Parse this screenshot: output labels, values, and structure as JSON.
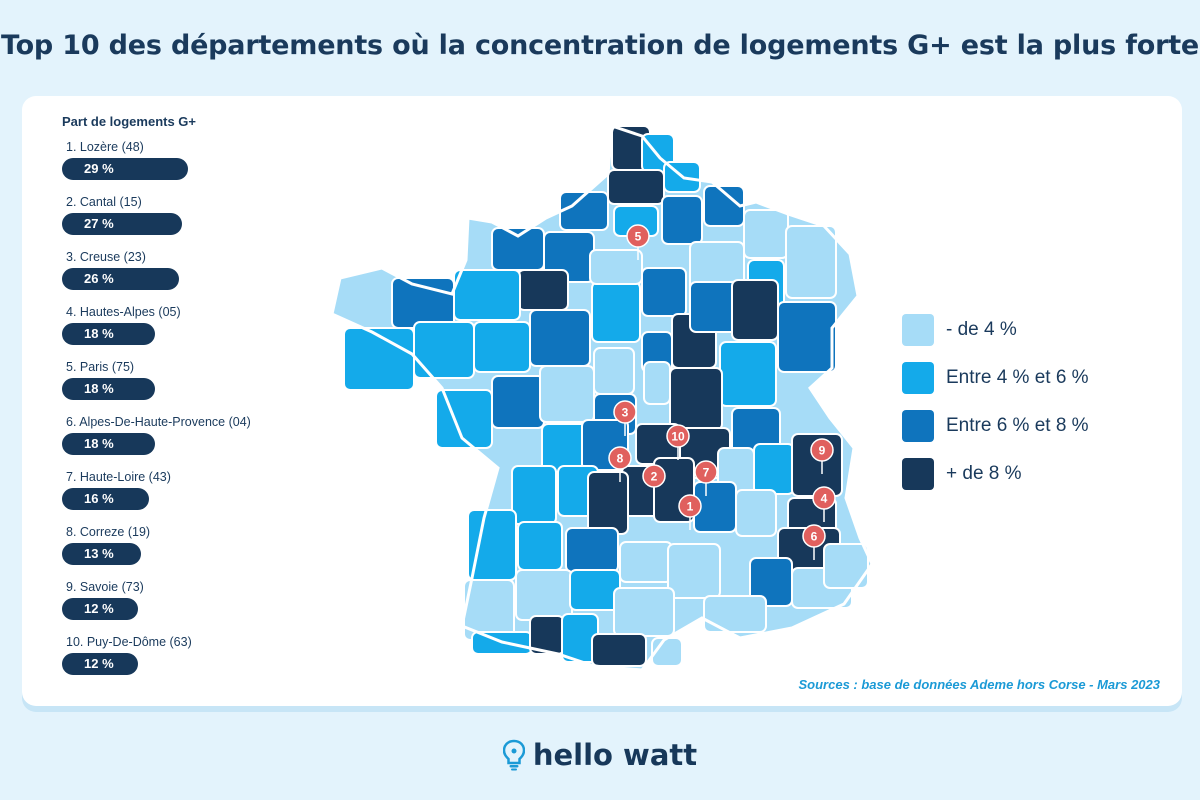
{
  "title": "Top 10 des départements où la concentration de logements G+ est la plus forte",
  "sidebar": {
    "title": "Part de logements G+"
  },
  "legend": [
    {
      "label": "-  de 4 %",
      "color": "#a6dcf7"
    },
    {
      "label": "Entre 4 % et 6 %",
      "color": "#14aaea"
    },
    {
      "label": "Entre 6 % et 8 %",
      "color": "#0f74bd"
    },
    {
      "label": "+ de 8 %",
      "color": "#17385a"
    }
  ],
  "source": "Sources : base de données Ademe hors Corse - Mars 2023",
  "brand": {
    "name": "hello watt"
  },
  "chart_data": {
    "type": "bar",
    "title": "Top 10 des départements où la concentration de logements G+ est la plus forte",
    "ylabel": "Part de logements G+",
    "categories": [
      "1. Lozère (48)",
      "2. Cantal (15)",
      "3. Creuse (23)",
      "4. Hautes-Alpes (05)",
      "5. Paris (75)",
      "6. Alpes-De-Haute-Provence (04)",
      "7. Haute-Loire (43)",
      "8. Correze (19)",
      "9. Savoie (73)",
      "10. Puy-De-Dôme (63)"
    ],
    "values": [
      29,
      27,
      26,
      18,
      18,
      18,
      16,
      13,
      12,
      12
    ],
    "value_labels": [
      "29 %",
      "27 %",
      "26 %",
      "18 %",
      "18 %",
      "18 %",
      "16 %",
      "13 %",
      "12 %",
      "12 %"
    ],
    "markers": [
      "1",
      "2",
      "3",
      "4",
      "5",
      "6",
      "7",
      "8",
      "9",
      "10"
    ]
  }
}
